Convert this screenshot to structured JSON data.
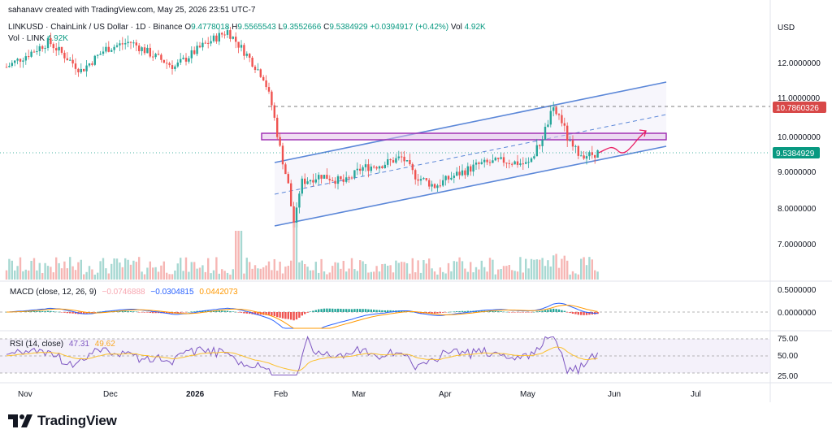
{
  "header": {
    "credit": "sahanavv created with TradingView.com, May 25, 2026 23:51 UTC-7",
    "symbol_line": "LINKUSD · ChainLink / US Dollar · 1D · Binance",
    "o_label": "O",
    "o_value": "9.4778018",
    "h_label": "H",
    "h_value": "9.5565543",
    "l_label": "L",
    "l_value": "9.3552666",
    "c_label": "C",
    "c_value": "9.5384929",
    "change": "+0.0394917 (+0.42%)",
    "vol_label": "Vol",
    "vol_value": "4.92K",
    "vol_line_label": "Vol · LINK",
    "vol_line_value": "4.92K"
  },
  "price_axis": {
    "currency": "USD",
    "ticks": [
      "12.0000000",
      "11.0000000",
      "10.0000000",
      "9.0000000",
      "8.0000000",
      "7.0000000"
    ],
    "current_price": "9.5384929",
    "resistance_price": "10.7860326"
  },
  "macd": {
    "label": "MACD (close, 12, 26, 9)",
    "hist_value": "−0.0746888",
    "macd_value": "−0.0304815",
    "signal_value": "0.0442073",
    "ticks": [
      "0.5000000",
      "0.0000000"
    ]
  },
  "rsi": {
    "label": "RSI (14, close)",
    "rsi_value": "47.31",
    "ma_value": "49.62",
    "ticks": [
      "75.00",
      "50.00",
      "25.00"
    ]
  },
  "time_axis": {
    "labels": [
      "Nov",
      "Dec",
      "2026",
      "Feb",
      "Mar",
      "Apr",
      "May",
      "Jun",
      "Jul"
    ]
  },
  "logo_text": "TradingView",
  "colors": {
    "up": "#26a69a",
    "down": "#ef5350",
    "channel": "#5b87d8",
    "zone": "#9c27b0",
    "projection": "#e91e63",
    "macd": "#2962ff",
    "signal": "#ff9800",
    "rsi": "#7e57c2",
    "rsi_ma": "#fbc02d"
  },
  "chart_data": {
    "type": "candlestick",
    "symbol": "LINKUSD",
    "interval": "1D",
    "x": [
      "Nov",
      "Dec",
      "2026",
      "Feb",
      "Mar",
      "Apr",
      "May",
      "Jun",
      "Jul"
    ],
    "last_close": 9.5384929,
    "ylim": [
      6.0,
      13.0
    ],
    "resistance_level": 10.7860326,
    "supply_zone": [
      9.92,
      10.08
    ],
    "channel": {
      "lower": [
        [
          "Jan 28",
          7.5
        ],
        [
          "Jun 5",
          9.7
        ]
      ],
      "upper": [
        [
          "Jan 28",
          9.2
        ],
        [
          "Jun 5",
          11.45
        ]
      ],
      "mid": [
        [
          "Jan 28",
          8.35
        ],
        [
          "Jun 5",
          10.58
        ]
      ]
    },
    "projection": [
      [
        "May 23",
        9.55
      ],
      [
        "May 28",
        9.7
      ],
      [
        "Jun 1",
        9.85
      ],
      [
        "Jun 4",
        10.3
      ]
    ],
    "rsi_levels": [
      75,
      50,
      25
    ]
  }
}
